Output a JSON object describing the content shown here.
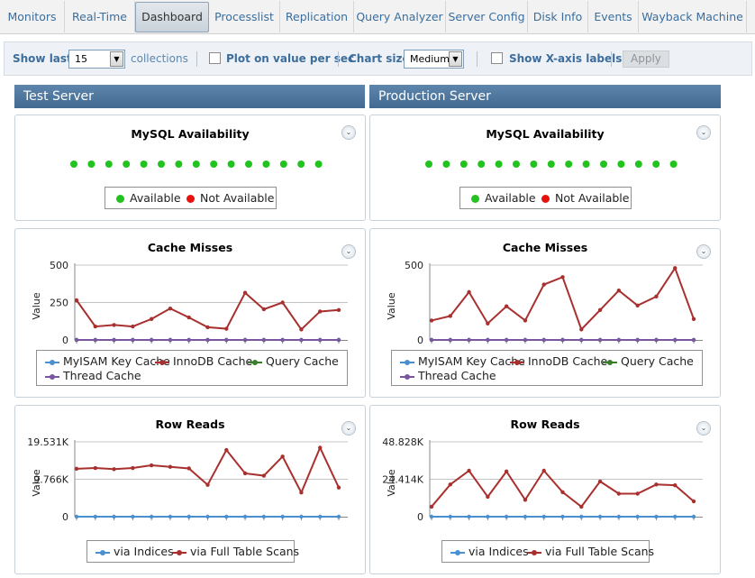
{
  "tabs": [
    {
      "label": "Monitors",
      "active": false
    },
    {
      "label": "Real-Time",
      "active": false
    },
    {
      "label": "Dashboard",
      "active": true
    },
    {
      "label": "Processlist",
      "active": false
    },
    {
      "label": "Replication",
      "active": false
    },
    {
      "label": "Query Analyzer",
      "active": false
    },
    {
      "label": "Server Config",
      "active": false
    },
    {
      "label": "Disk Info",
      "active": false
    },
    {
      "label": "Events",
      "active": false
    },
    {
      "label": "Wayback Machine",
      "active": false
    }
  ],
  "toolbar": {
    "show_last_label": "Show last",
    "show_last_value": "15",
    "collections_label": "collections",
    "plot_label": "Plot on value per sec",
    "plot_checked": false,
    "chart_size_label": "Chart size",
    "chart_size_value": "Medium",
    "xaxis_label": "Show X-axis labels",
    "xaxis_checked": false,
    "apply_label": "Apply"
  },
  "colors": {
    "available": "#22c31e",
    "not_available": "#e8120c",
    "series_blue": "#4a90d0",
    "series_red": "#a8302e",
    "series_green": "#3a7d2a",
    "series_purple": "#7a55a0",
    "header_blue": "#4d7399"
  },
  "columns": [
    {
      "title": "Test Server",
      "availability": {
        "title": "MySQL Availability",
        "points": 15,
        "status": [
          "available",
          "available",
          "available",
          "available",
          "available",
          "available",
          "available",
          "available",
          "available",
          "available",
          "available",
          "available",
          "available",
          "available",
          "available"
        ],
        "legend": [
          "Available",
          "Not Available"
        ]
      },
      "cache": {
        "chart_data": {
          "type": "line",
          "title": "Cache Misses",
          "ylabel": "Value",
          "ylim": [
            0,
            500
          ],
          "yticks": [
            "0",
            "250",
            "500"
          ],
          "series": [
            {
              "name": "MyISAM Key Cache",
              "values": [
                0,
                0,
                0,
                0,
                0,
                0,
                0,
                0,
                0,
                0,
                0,
                0,
                0,
                0,
                0
              ]
            },
            {
              "name": "InnoDB Cache",
              "values": [
                265,
                90,
                100,
                90,
                140,
                210,
                150,
                85,
                75,
                315,
                205,
                250,
                70,
                190,
                200
              ]
            },
            {
              "name": "Query Cache",
              "values": [
                0,
                0,
                0,
                0,
                0,
                0,
                0,
                0,
                0,
                0,
                0,
                0,
                0,
                0,
                0
              ]
            },
            {
              "name": "Thread Cache",
              "values": [
                0,
                0,
                0,
                0,
                0,
                0,
                0,
                0,
                0,
                0,
                0,
                0,
                0,
                0,
                0
              ]
            }
          ]
        }
      },
      "rows": {
        "chart_data": {
          "type": "line",
          "title": "Row Reads",
          "ylabel": "Value",
          "ylim": [
            0,
            19531
          ],
          "yticks": [
            "0",
            "9.766K",
            "19.531K"
          ],
          "series": [
            {
              "name": "via Indices",
              "values": [
                0,
                0,
                0,
                0,
                0,
                0,
                0,
                0,
                0,
                0,
                0,
                0,
                0,
                0,
                0
              ]
            },
            {
              "name": "via Full Table Scans",
              "values": [
                12500,
                12700,
                12400,
                12700,
                13400,
                13000,
                12600,
                8300,
                17400,
                11300,
                10700,
                15700,
                6300,
                18000,
                7600
              ]
            }
          ]
        }
      }
    },
    {
      "title": "Production Server",
      "availability": {
        "title": "MySQL Availability",
        "points": 15,
        "status": [
          "available",
          "available",
          "available",
          "available",
          "available",
          "available",
          "available",
          "available",
          "available",
          "available",
          "available",
          "available",
          "available",
          "available",
          "available"
        ],
        "legend": [
          "Available",
          "Not Available"
        ]
      },
      "cache": {
        "chart_data": {
          "type": "line",
          "title": "Cache Misses",
          "ylabel": "Value",
          "ylim": [
            0,
            500
          ],
          "yticks": [
            "0",
            "500"
          ],
          "series": [
            {
              "name": "MyISAM Key Cache",
              "values": [
                0,
                0,
                0,
                0,
                0,
                0,
                0,
                0,
                0,
                0,
                0,
                0,
                0,
                0,
                0
              ]
            },
            {
              "name": "InnoDB Cache",
              "values": [
                130,
                160,
                320,
                110,
                225,
                130,
                370,
                420,
                70,
                200,
                330,
                230,
                290,
                480,
                140
              ]
            },
            {
              "name": "Query Cache",
              "values": [
                0,
                0,
                0,
                0,
                0,
                0,
                0,
                0,
                0,
                0,
                0,
                0,
                0,
                0,
                0
              ]
            },
            {
              "name": "Thread Cache",
              "values": [
                0,
                0,
                0,
                0,
                0,
                0,
                0,
                0,
                0,
                0,
                0,
                0,
                0,
                0,
                0
              ]
            }
          ]
        }
      },
      "rows": {
        "chart_data": {
          "type": "line",
          "title": "Row Reads",
          "ylabel": "Value",
          "ylim": [
            0,
            48828
          ],
          "yticks": [
            "0",
            "24.414K",
            "48.828K"
          ],
          "series": [
            {
              "name": "via Indices",
              "values": [
                0,
                0,
                0,
                0,
                0,
                0,
                0,
                0,
                0,
                0,
                0,
                0,
                0,
                0,
                0
              ]
            },
            {
              "name": "via Full Table Scans",
              "values": [
                6500,
                21000,
                30000,
                13000,
                29500,
                11000,
                30000,
                16000,
                6500,
                23000,
                15000,
                15000,
                21000,
                20500,
                10000
              ]
            }
          ]
        }
      }
    }
  ]
}
